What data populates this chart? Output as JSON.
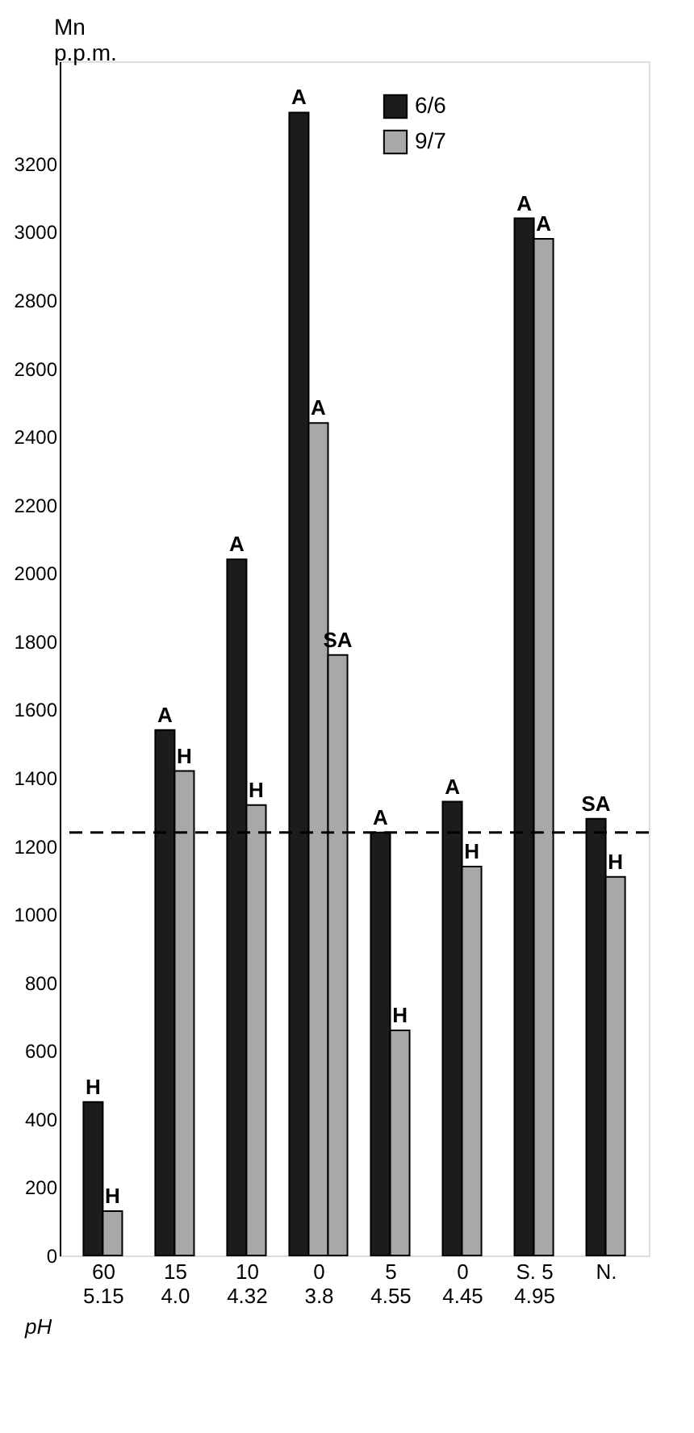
{
  "chart_data": {
    "type": "bar",
    "ylabel": "Mn p.p.m.",
    "xlabel": "pH",
    "categories": [
      "60\n5.15",
      "15\n4.0",
      "10\n4.32",
      "0\n3.8",
      "5\n4.55",
      "0\n4.45",
      "S. 5\n4.95",
      "N."
    ],
    "series": [
      {
        "name": "6/6",
        "color": "#1c1c1c",
        "values": [
          450,
          1540,
          2040,
          3350,
          1240,
          1330,
          3040,
          1280
        ],
        "value_labels": [
          "H",
          "A",
          "A",
          "A",
          "A",
          "A",
          "A",
          "SA"
        ]
      },
      {
        "name": "9/7",
        "color": "#a8a8a8",
        "values": [
          130,
          1420,
          1320,
          2440,
          660,
          1140,
          2980,
          1110
        ],
        "value_labels": [
          "H",
          "H",
          "H",
          "A",
          "H",
          "H",
          "A",
          "H"
        ]
      },
      {
        "color": "#a8a8a8",
        "values": [
          null,
          null,
          null,
          1760,
          null,
          null,
          null,
          null
        ],
        "value_labels": [
          null,
          null,
          null,
          "SA",
          null,
          null,
          null,
          null
        ]
      }
    ],
    "ylim": [
      0,
      3500
    ],
    "yticks": [
      0,
      200,
      400,
      600,
      800,
      1000,
      1200,
      1400,
      1600,
      1800,
      2000,
      2200,
      2400,
      2600,
      2800,
      3000,
      3200
    ],
    "ref_lines": [
      {
        "axis": "y",
        "value": 1240,
        "line_style": "dashed"
      }
    ],
    "legend": "top",
    "grid": false
  }
}
